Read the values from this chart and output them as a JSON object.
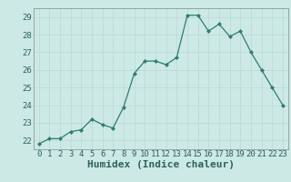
{
  "x": [
    0,
    1,
    2,
    3,
    4,
    5,
    6,
    7,
    8,
    9,
    10,
    11,
    12,
    13,
    14,
    15,
    16,
    17,
    18,
    19,
    20,
    21,
    22,
    23
  ],
  "y": [
    21.8,
    22.1,
    22.1,
    22.5,
    22.6,
    23.2,
    22.9,
    22.7,
    23.9,
    25.8,
    26.5,
    26.5,
    26.3,
    26.7,
    29.1,
    29.1,
    28.2,
    28.6,
    27.9,
    28.2,
    27.0,
    26.0,
    25.0,
    24.0
  ],
  "xlabel": "Humidex (Indice chaleur)",
  "ylim": [
    21.5,
    29.5
  ],
  "yticks": [
    22,
    23,
    24,
    25,
    26,
    27,
    28,
    29
  ],
  "xticks": [
    0,
    1,
    2,
    3,
    4,
    5,
    6,
    7,
    8,
    9,
    10,
    11,
    12,
    13,
    14,
    15,
    16,
    17,
    18,
    19,
    20,
    21,
    22,
    23
  ],
  "line_color": "#2e7d6e",
  "marker": "D",
  "marker_size": 2.0,
  "bg_color": "#cce9e5",
  "grid_color": "#b8d8d4",
  "tick_fontsize": 6.5,
  "xlabel_fontsize": 8.0
}
